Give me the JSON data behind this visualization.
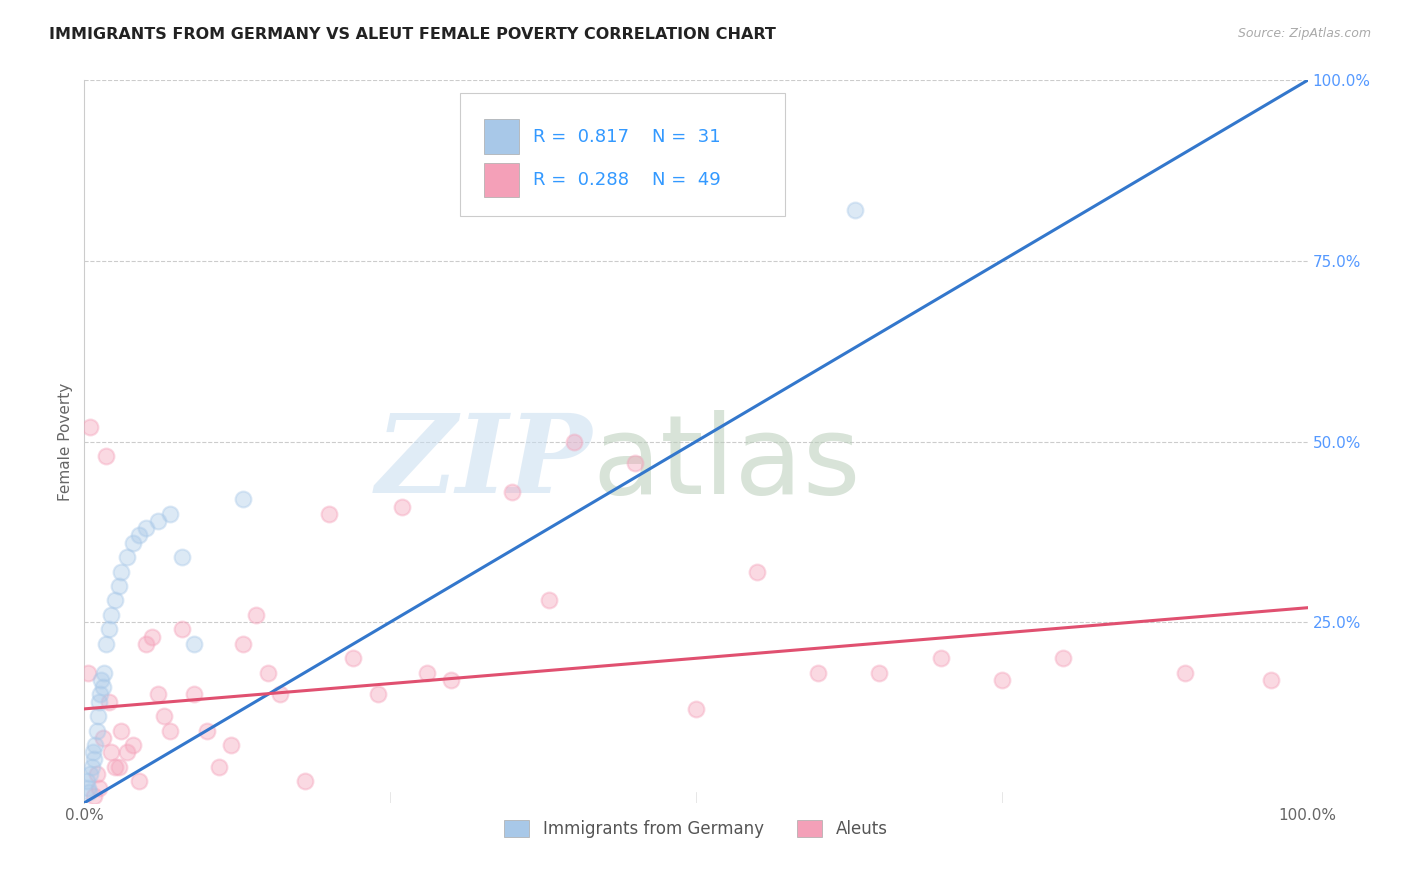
{
  "title": "IMMIGRANTS FROM GERMANY VS ALEUT FEMALE POVERTY CORRELATION CHART",
  "source": "Source: ZipAtlas.com",
  "ylabel": "Female Poverty",
  "watermark_zip": "ZIP",
  "watermark_atlas": "atlas",
  "legend_bottom": [
    "Immigrants from Germany",
    "Aleuts"
  ],
  "blue_R": 0.817,
  "blue_N": 31,
  "pink_R": 0.288,
  "pink_N": 49,
  "blue_color": "#a8c8e8",
  "pink_color": "#f4a0b8",
  "blue_line_color": "#3377cc",
  "pink_line_color": "#e05070",
  "title_color": "#222222",
  "axis_label_color": "#666666",
  "grid_color": "#cccccc",
  "legend_text_color": "#555555",
  "stat_color": "#3399ff",
  "right_tick_color": "#5599ff",
  "blue_scatter_x": [
    0.2,
    0.3,
    0.4,
    0.5,
    0.6,
    0.7,
    0.8,
    0.9,
    1.0,
    1.1,
    1.2,
    1.3,
    1.4,
    1.5,
    1.6,
    1.8,
    2.0,
    2.2,
    2.5,
    2.8,
    3.0,
    3.5,
    4.0,
    4.5,
    5.0,
    6.0,
    7.0,
    8.0,
    9.0,
    13.0,
    63.0
  ],
  "blue_scatter_y": [
    3.0,
    2.0,
    1.5,
    4.0,
    5.0,
    7.0,
    6.0,
    8.0,
    10.0,
    12.0,
    14.0,
    15.0,
    17.0,
    16.0,
    18.0,
    22.0,
    24.0,
    26.0,
    28.0,
    30.0,
    32.0,
    34.0,
    36.0,
    37.0,
    38.0,
    39.0,
    40.0,
    34.0,
    22.0,
    42.0,
    82.0
  ],
  "pink_scatter_x": [
    0.3,
    0.5,
    0.8,
    1.0,
    1.2,
    1.5,
    1.8,
    2.0,
    2.2,
    2.5,
    2.8,
    3.0,
    3.5,
    4.0,
    4.5,
    5.0,
    5.5,
    6.0,
    6.5,
    7.0,
    8.0,
    9.0,
    10.0,
    11.0,
    12.0,
    13.0,
    14.0,
    15.0,
    16.0,
    18.0,
    20.0,
    22.0,
    24.0,
    26.0,
    28.0,
    30.0,
    35.0,
    38.0,
    40.0,
    45.0,
    50.0,
    55.0,
    60.0,
    65.0,
    70.0,
    75.0,
    80.0,
    90.0,
    97.0
  ],
  "pink_scatter_y": [
    18.0,
    52.0,
    1.0,
    4.0,
    2.0,
    9.0,
    48.0,
    14.0,
    7.0,
    5.0,
    5.0,
    10.0,
    7.0,
    8.0,
    3.0,
    22.0,
    23.0,
    15.0,
    12.0,
    10.0,
    24.0,
    15.0,
    10.0,
    5.0,
    8.0,
    22.0,
    26.0,
    18.0,
    15.0,
    3.0,
    40.0,
    20.0,
    15.0,
    41.0,
    18.0,
    17.0,
    43.0,
    28.0,
    50.0,
    47.0,
    13.0,
    32.0,
    18.0,
    18.0,
    20.0,
    17.0,
    20.0,
    18.0,
    17.0
  ],
  "xlim": [
    0,
    100
  ],
  "ylim": [
    0,
    100
  ],
  "background_color": "#ffffff",
  "marker_size": 130,
  "marker_alpha": 0.4,
  "blue_line_x0": 0,
  "blue_line_y0": 0,
  "blue_line_x1": 100,
  "blue_line_y1": 100,
  "pink_line_x0": 0,
  "pink_line_y0": 13,
  "pink_line_x1": 100,
  "pink_line_y1": 27
}
